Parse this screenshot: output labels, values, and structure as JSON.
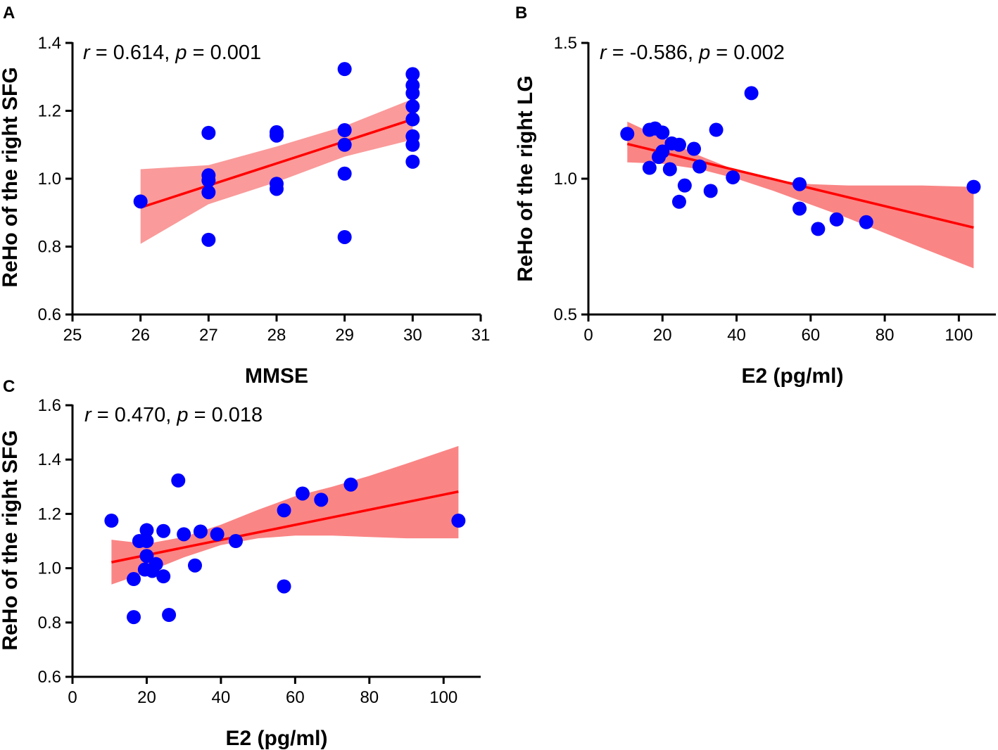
{
  "chart_data": [
    {
      "type": "scatter",
      "panel": "A",
      "xlabel": "MMSE",
      "ylabel": "ReHo of the right SFG",
      "xlim": [
        25,
        31
      ],
      "ylim": [
        0.6,
        1.4
      ],
      "xticks": [
        "25",
        "26",
        "27",
        "28",
        "29",
        "30",
        "31"
      ],
      "yticks": [
        "0.6",
        "0.8",
        "1.0",
        "1.2",
        "1.4"
      ],
      "annotation": {
        "r_symbol": "r",
        "r_text": " = 0.614, ",
        "p_symbol": "p",
        "p_text": " = 0.001"
      },
      "points": [
        [
          26,
          0.933
        ],
        [
          27,
          1.135
        ],
        [
          27,
          1.01
        ],
        [
          27,
          0.995
        ],
        [
          27,
          0.96
        ],
        [
          27,
          0.82
        ],
        [
          28,
          1.137
        ],
        [
          28,
          1.127
        ],
        [
          28,
          0.985
        ],
        [
          28,
          0.97
        ],
        [
          29,
          1.323
        ],
        [
          29,
          1.143
        ],
        [
          29,
          1.1
        ],
        [
          29,
          1.015
        ],
        [
          29,
          0.828
        ],
        [
          30,
          1.308
        ],
        [
          30,
          1.275
        ],
        [
          30,
          1.252
        ],
        [
          30,
          1.213
        ],
        [
          30,
          1.175
        ],
        [
          30,
          1.125
        ],
        [
          30,
          1.1
        ],
        [
          30,
          1.05
        ]
      ],
      "fit": {
        "x": [
          26,
          30
        ],
        "y": [
          0.915,
          1.175
        ]
      },
      "ci": {
        "x": [
          26,
          27,
          28,
          29,
          30
        ],
        "upper": [
          1.028,
          1.04,
          1.095,
          1.155,
          1.235
        ],
        "lower": [
          0.808,
          0.925,
          0.99,
          1.065,
          1.115
        ]
      },
      "colors": {
        "points": "#0000ff",
        "fit": "#ff0000",
        "ci": "#fa9a9a"
      }
    },
    {
      "type": "scatter",
      "panel": "B",
      "xlabel": "E2 (pg/ml)",
      "ylabel": "ReHo of the right LG",
      "xlim": [
        0,
        110
      ],
      "ylim": [
        0.5,
        1.5
      ],
      "xticks": [
        "0",
        "20",
        "40",
        "60",
        "80",
        "100"
      ],
      "yticks": [
        "0.5",
        "1.0",
        "1.5"
      ],
      "annotation": {
        "r_symbol": "r",
        "r_text": " = -0.586, ",
        "p_symbol": "p",
        "p_text": " = 0.002"
      },
      "points": [
        [
          10.5,
          1.165
        ],
        [
          16.5,
          1.18
        ],
        [
          18,
          1.185
        ],
        [
          20,
          1.17
        ],
        [
          16.5,
          1.04
        ],
        [
          19,
          1.08
        ],
        [
          20,
          1.1
        ],
        [
          22,
          1.035
        ],
        [
          22.5,
          1.13
        ],
        [
          24.5,
          1.125
        ],
        [
          28.5,
          1.11
        ],
        [
          30,
          1.045
        ],
        [
          34.5,
          1.18
        ],
        [
          26,
          0.975
        ],
        [
          24.5,
          0.915
        ],
        [
          33,
          0.955
        ],
        [
          39,
          1.005
        ],
        [
          44,
          1.315
        ],
        [
          57,
          0.98
        ],
        [
          57,
          0.89
        ],
        [
          62,
          0.815
        ],
        [
          67,
          0.85
        ],
        [
          75,
          0.84
        ],
        [
          104,
          0.97
        ]
      ],
      "fit": {
        "x": [
          10.5,
          104
        ],
        "y": [
          1.128,
          0.82
        ]
      },
      "ci": {
        "x": [
          10.5,
          20,
          30,
          40,
          50,
          60,
          70,
          80,
          90,
          104
        ],
        "upper": [
          1.21,
          1.15,
          1.085,
          1.03,
          0.995,
          0.98,
          0.975,
          0.975,
          0.975,
          0.97
        ],
        "lower": [
          1.06,
          1.055,
          1.035,
          1.0,
          0.955,
          0.905,
          0.855,
          0.8,
          0.745,
          0.67
        ]
      },
      "colors": {
        "points": "#0000ff",
        "fit": "#ff0000",
        "ci": "#fa8585"
      }
    },
    {
      "type": "scatter",
      "panel": "C",
      "xlabel": "E2 (pg/ml)",
      "ylabel": "ReHo of the right SFG",
      "xlim": [
        0,
        110
      ],
      "ylim": [
        0.6,
        1.6
      ],
      "xticks": [
        "0",
        "20",
        "40",
        "60",
        "80",
        "100"
      ],
      "yticks": [
        "0.6",
        "0.8",
        "1.0",
        "1.2",
        "1.4",
        "1.6"
      ],
      "annotation": {
        "r_symbol": "r",
        "r_text": " = 0.470, ",
        "p_symbol": "p",
        "p_text": " = 0.018"
      },
      "points": [
        [
          10.5,
          1.175
        ],
        [
          16.5,
          0.96
        ],
        [
          16.5,
          0.82
        ],
        [
          18,
          1.1
        ],
        [
          19.5,
          0.995
        ],
        [
          20,
          1.14
        ],
        [
          20,
          1.1
        ],
        [
          20,
          1.045
        ],
        [
          21.5,
          0.99
        ],
        [
          22.5,
          1.015
        ],
        [
          24.5,
          0.97
        ],
        [
          24.5,
          1.137
        ],
        [
          26,
          0.828
        ],
        [
          28.5,
          1.323
        ],
        [
          30,
          1.125
        ],
        [
          33,
          1.01
        ],
        [
          34.5,
          1.135
        ],
        [
          39,
          1.125
        ],
        [
          44,
          1.1
        ],
        [
          57,
          1.213
        ],
        [
          57,
          0.933
        ],
        [
          62,
          1.275
        ],
        [
          67,
          1.252
        ],
        [
          75,
          1.308
        ],
        [
          104,
          1.175
        ]
      ],
      "fit": {
        "x": [
          10.5,
          104
        ],
        "y": [
          1.022,
          1.282
        ]
      },
      "ci": {
        "x": [
          10.5,
          20,
          30,
          40,
          50,
          60,
          70,
          80,
          90,
          104
        ],
        "upper": [
          1.105,
          1.09,
          1.115,
          1.16,
          1.215,
          1.265,
          1.3,
          1.34,
          1.385,
          1.45
        ],
        "lower": [
          0.94,
          0.985,
          1.04,
          1.085,
          1.11,
          1.12,
          1.12,
          1.115,
          1.11,
          1.11
        ]
      },
      "colors": {
        "points": "#0000ff",
        "fit": "#ff0000",
        "ci": "#fa8585"
      }
    }
  ]
}
